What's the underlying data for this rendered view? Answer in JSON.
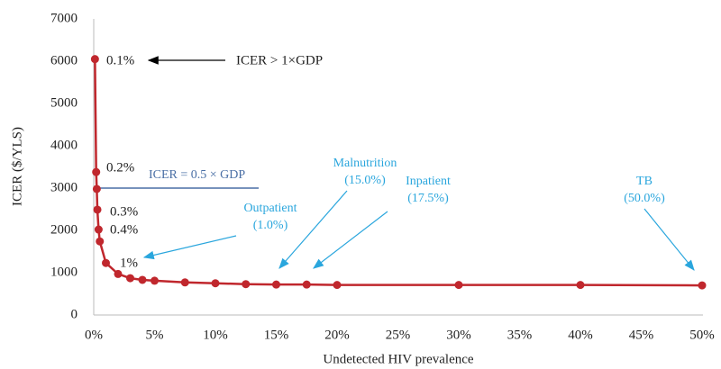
{
  "chart_data": {
    "type": "line",
    "x_label": "Undetected HIV prevalence",
    "y_label": "ICER ($/YLS)",
    "x": [
      0.1,
      0.2,
      0.25,
      0.3,
      0.4,
      0.5,
      1,
      2,
      3,
      4,
      5,
      7.5,
      10,
      12.5,
      15,
      17.5,
      20,
      30,
      40,
      50
    ],
    "series": [
      {
        "name": "ICER",
        "color": "#c0272d",
        "values": [
          6050,
          3380,
          2980,
          2490,
          2020,
          1740,
          1230,
          970,
          870,
          830,
          810,
          770,
          750,
          730,
          720,
          720,
          710,
          710,
          710,
          700
        ]
      }
    ],
    "xlim": [
      0,
      50
    ],
    "xticks": [
      {
        "value": 0,
        "label": "0%"
      },
      {
        "value": 5,
        "label": "5%"
      },
      {
        "value": 10,
        "label": "10%"
      },
      {
        "value": 15,
        "label": "15%"
      },
      {
        "value": 20,
        "label": "20%"
      },
      {
        "value": 25,
        "label": "25%"
      },
      {
        "value": 30,
        "label": "30%"
      },
      {
        "value": 35,
        "label": "35%"
      },
      {
        "value": 40,
        "label": "40%"
      },
      {
        "value": 45,
        "label": "45%"
      },
      {
        "value": 50,
        "label": "50%"
      }
    ],
    "ylim": [
      0,
      7000
    ],
    "yticks": [
      0,
      1000,
      2000,
      3000,
      4000,
      5000,
      6000,
      7000
    ],
    "point_labels": [
      "0.1%",
      "0.2%",
      "0.3%",
      "0.4%",
      "1%"
    ],
    "threshold_annotation": "ICER > 1×GDP",
    "reference_line": {
      "value": 3000,
      "label": "ICER = 0.5 × GDP",
      "color": "#4a6fa5"
    },
    "scenario_color": "#2aa6dd",
    "scenarios": [
      {
        "label": "Outpatient",
        "detail": "(1.0%)"
      },
      {
        "label": "Malnutrition",
        "detail": "(15.0%)"
      },
      {
        "label": "Inpatient",
        "detail": "(17.5%)"
      },
      {
        "label": "TB",
        "detail": "(50.0%)"
      }
    ]
  }
}
